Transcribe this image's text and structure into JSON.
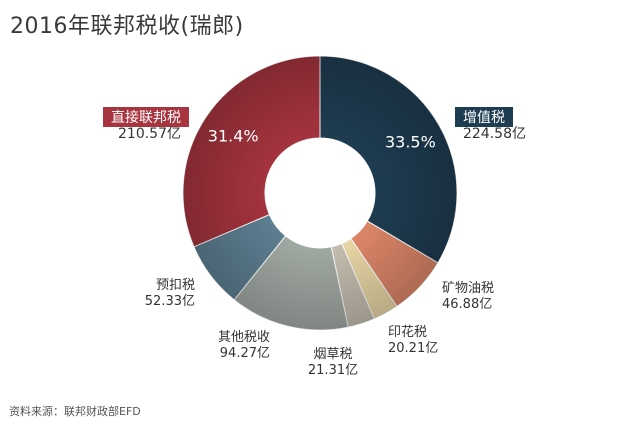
{
  "title": "2016年联邦税收(瑞郎)",
  "source": "资料来源：联邦财政部EFD",
  "chart_data": {
    "type": "pie",
    "title": "2016年联邦税收(瑞郎)",
    "donut": true,
    "legend": "labels beside slices",
    "slices": [
      {
        "name": "增值税",
        "value": 224.58,
        "value_label": "224.58亿",
        "pct_label": "33.5%",
        "color": "#1f3d52"
      },
      {
        "name": "矿物油税",
        "value": 46.88,
        "value_label": "46.88亿",
        "color": "#e0886a"
      },
      {
        "name": "印花税",
        "value": 20.21,
        "value_label": "20.21亿",
        "color": "#ecd9a8"
      },
      {
        "name": "烟草税",
        "value": 21.31,
        "value_label": "21.31亿",
        "color": "#c7c0b2"
      },
      {
        "name": "其他税收",
        "value": 94.27,
        "value_label": "94.27亿",
        "color": "#a4aca6"
      },
      {
        "name": "预扣税",
        "value": 52.33,
        "value_label": "52.33亿",
        "color": "#5f8194"
      },
      {
        "name": "直接联邦税",
        "value": 210.57,
        "value_label": "210.57亿",
        "pct_label": "31.4%",
        "color": "#a7343f"
      }
    ]
  }
}
